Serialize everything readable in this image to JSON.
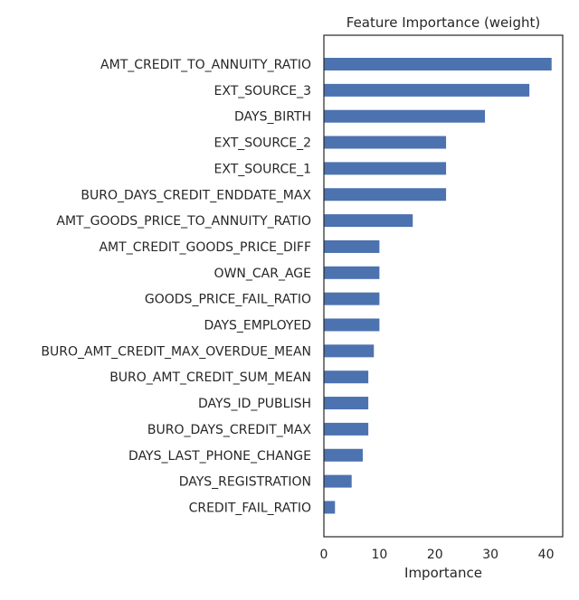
{
  "chart_data": {
    "type": "bar",
    "orientation": "horizontal",
    "title": "Feature Importance (weight)",
    "xlabel": "Importance",
    "ylabel": "",
    "xlim": [
      0,
      43
    ],
    "xticks": [
      0,
      10,
      20,
      30,
      40
    ],
    "grid": false,
    "legend": "none",
    "bar_color": "#4C72B0",
    "categories": [
      "AMT_CREDIT_TO_ANNUITY_RATIO",
      "EXT_SOURCE_3",
      "DAYS_BIRTH",
      "EXT_SOURCE_2",
      "EXT_SOURCE_1",
      "BURO_DAYS_CREDIT_ENDDATE_MAX",
      "AMT_GOODS_PRICE_TO_ANNUITY_RATIO",
      "AMT_CREDIT_GOODS_PRICE_DIFF",
      "OWN_CAR_AGE",
      "GOODS_PRICE_FAIL_RATIO",
      "DAYS_EMPLOYED",
      "BURO_AMT_CREDIT_MAX_OVERDUE_MEAN",
      "BURO_AMT_CREDIT_SUM_MEAN",
      "DAYS_ID_PUBLISH",
      "BURO_DAYS_CREDIT_MAX",
      "DAYS_LAST_PHONE_CHANGE",
      "DAYS_REGISTRATION",
      "CREDIT_FAIL_RATIO"
    ],
    "values": [
      41,
      37,
      29,
      22,
      22,
      22,
      16,
      10,
      10,
      10,
      10,
      9,
      8,
      8,
      8,
      7,
      5,
      2
    ]
  }
}
